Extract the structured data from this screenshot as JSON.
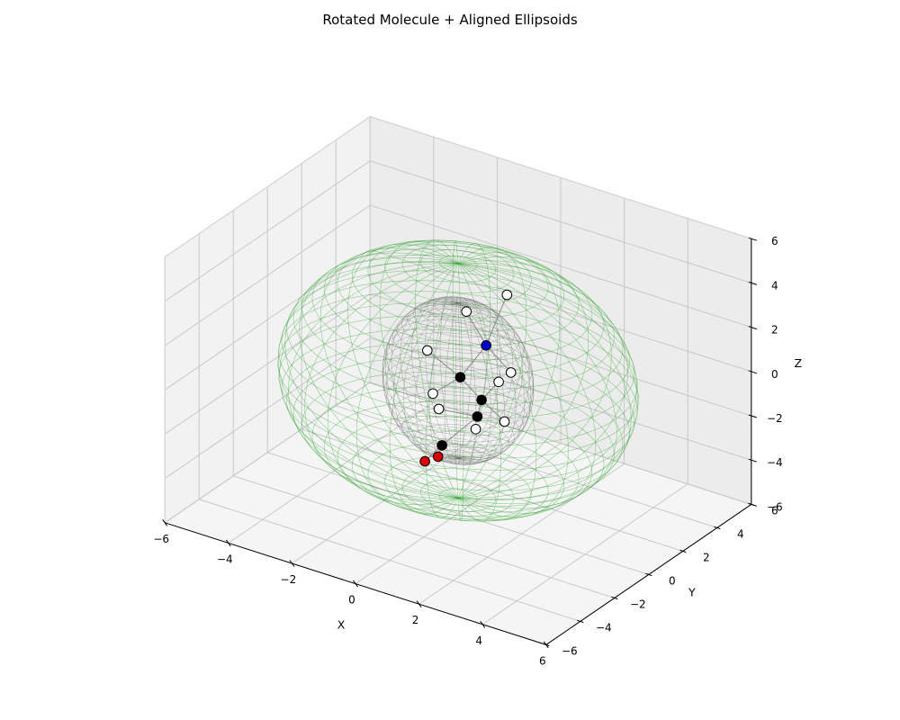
{
  "chart_data": {
    "type": "scatter3d",
    "title": "Rotated Molecule + Aligned Ellipsoids",
    "xlabel": "X",
    "ylabel": "Y",
    "zlabel": "Z",
    "xlim": [
      -6,
      6
    ],
    "ylim": [
      -6,
      6
    ],
    "zlim": [
      -6,
      6
    ],
    "xticks": [
      -6,
      -4,
      -2,
      0,
      2,
      4,
      6
    ],
    "yticks": [
      -6,
      -4,
      -2,
      0,
      2,
      4,
      6
    ],
    "zticks": [
      -6,
      -4,
      -2,
      0,
      2,
      4,
      6
    ],
    "grid": true,
    "atoms": [
      {
        "element": "N",
        "color": "#0000cc",
        "x": 0.4,
        "y": 0.9,
        "z": 1.3
      },
      {
        "element": "C",
        "color": "#000000",
        "x": -0.2,
        "y": 0.5,
        "z": -0.2
      },
      {
        "element": "C",
        "color": "#000000",
        "x": 0.9,
        "y": -0.3,
        "z": -0.3
      },
      {
        "element": "C",
        "color": "#000000",
        "x": 0.5,
        "y": 0.2,
        "z": -1.5
      },
      {
        "element": "C",
        "color": "#000000",
        "x": -0.4,
        "y": -0.2,
        "z": -3.0
      },
      {
        "element": "O",
        "color": "#dd0000",
        "x": -0.2,
        "y": -0.8,
        "z": -3.1
      },
      {
        "element": "O",
        "color": "#dd0000",
        "x": -1.1,
        "y": 0.1,
        "z": -4.2
      },
      {
        "element": "H",
        "color": "#ffffff",
        "x": -0.6,
        "y": 1.6,
        "z": 2.0
      },
      {
        "element": "H",
        "color": "#ffffff",
        "x": 0.3,
        "y": 2.3,
        "z": 2.8
      },
      {
        "element": "H",
        "color": "#ffffff",
        "x": 1.5,
        "y": 0.3,
        "z": 0.9
      },
      {
        "element": "H",
        "color": "#ffffff",
        "x": 1.6,
        "y": -0.6,
        "z": 1.0
      },
      {
        "element": "H",
        "color": "#ffffff",
        "x": -1.4,
        "y": 0.8,
        "z": 0.3
      },
      {
        "element": "H",
        "color": "#ffffff",
        "x": 2.0,
        "y": -1.0,
        "z": -0.4
      },
      {
        "element": "H",
        "color": "#ffffff",
        "x": -0.9,
        "y": 0.2,
        "z": -1.1
      },
      {
        "element": "H",
        "color": "#ffffff",
        "x": -0.5,
        "y": -0.2,
        "z": -1.4
      },
      {
        "element": "H",
        "color": "#ffffff",
        "x": 1.2,
        "y": -1.2,
        "z": -1.0
      }
    ],
    "bonds": [
      [
        0,
        1
      ],
      [
        0,
        7
      ],
      [
        0,
        8
      ],
      [
        0,
        9
      ],
      [
        1,
        2
      ],
      [
        1,
        11
      ],
      [
        1,
        13
      ],
      [
        2,
        3
      ],
      [
        2,
        10
      ],
      [
        2,
        12
      ],
      [
        3,
        4
      ],
      [
        3,
        14
      ],
      [
        4,
        5
      ],
      [
        4,
        6
      ]
    ],
    "ellipsoids": [
      {
        "color": "#2ca02c",
        "center": [
          0,
          0,
          0
        ],
        "radii": [
          5.0,
          5.0,
          5.3
        ]
      },
      {
        "color": "#555555",
        "center": [
          0,
          0,
          0
        ],
        "radii": [
          2.1,
          2.1,
          3.5
        ]
      }
    ]
  }
}
